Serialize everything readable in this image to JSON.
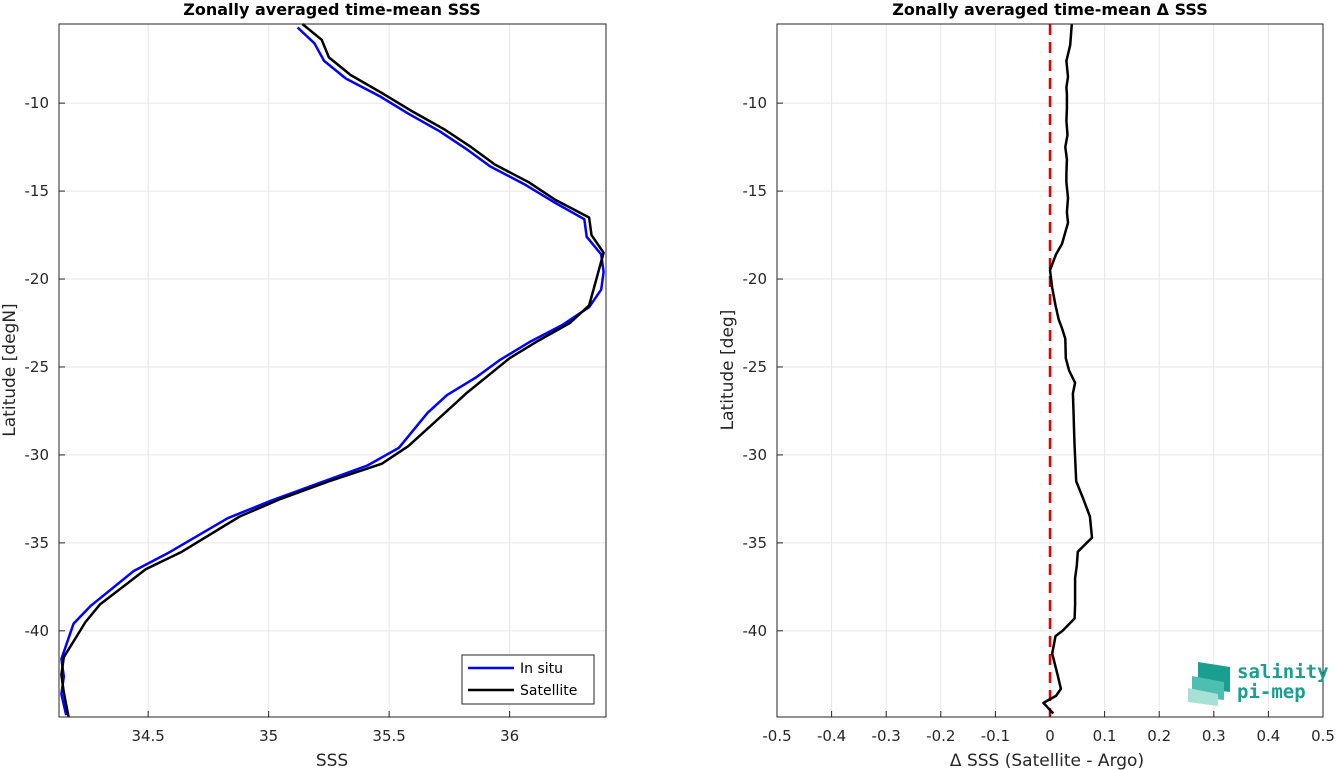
{
  "chart_data": [
    {
      "type": "line",
      "title": "Zonally averaged time-mean SSS",
      "xlabel": "SSS",
      "ylabel": "Latitude [degN]",
      "xlim": [
        34.13,
        36.4
      ],
      "ylim": [
        -44.9,
        -5.5
      ],
      "xticks": [
        "34.5",
        "35",
        "35.5",
        "36"
      ],
      "yticks": [
        "-10",
        "-15",
        "-20",
        "-25",
        "-30",
        "-35",
        "-40"
      ],
      "grid": true,
      "legend_position": "bottom-right",
      "series": [
        {
          "name": "In situ",
          "color": "#0000ff",
          "x": [
            35.12,
            35.19,
            35.23,
            35.32,
            35.46,
            35.58,
            35.71,
            35.82,
            35.92,
            36.06,
            36.18,
            36.31,
            36.32,
            36.38,
            36.39,
            36.38,
            36.33,
            36.22,
            36.08,
            35.96,
            35.86,
            35.74,
            35.66,
            35.54,
            35.41,
            35.21,
            35.01,
            34.83,
            34.58,
            34.44,
            34.26,
            34.19,
            34.14,
            34.15,
            34.14,
            34.16
          ],
          "y": [
            -5.7,
            -6.6,
            -7.6,
            -8.6,
            -9.6,
            -10.6,
            -11.6,
            -12.6,
            -13.6,
            -14.6,
            -15.6,
            -16.6,
            -17.6,
            -18.6,
            -19.6,
            -20.6,
            -21.6,
            -22.6,
            -23.6,
            -24.6,
            -25.6,
            -26.6,
            -27.6,
            -29.6,
            -30.6,
            -31.6,
            -32.6,
            -33.6,
            -35.6,
            -36.6,
            -38.6,
            -39.6,
            -41.6,
            -42.6,
            -43.6,
            -44.8
          ]
        },
        {
          "name": "Satellite",
          "color": "#000000",
          "x": [
            35.14,
            35.22,
            35.25,
            35.34,
            35.48,
            35.6,
            35.73,
            35.84,
            35.94,
            36.08,
            36.19,
            36.33,
            36.34,
            36.39,
            36.37,
            36.35,
            36.33,
            36.25,
            36.12,
            36.0,
            35.91,
            35.82,
            35.74,
            35.58,
            35.47,
            35.25,
            35.05,
            34.88,
            34.64,
            34.49,
            34.3,
            34.24,
            34.15,
            34.14,
            34.15,
            34.17
          ],
          "y": [
            -5.5,
            -6.4,
            -7.4,
            -8.4,
            -9.5,
            -10.5,
            -11.5,
            -12.5,
            -13.5,
            -14.5,
            -15.5,
            -16.5,
            -17.5,
            -18.5,
            -19.5,
            -20.5,
            -21.5,
            -22.5,
            -23.5,
            -24.5,
            -25.5,
            -26.5,
            -27.5,
            -29.5,
            -30.5,
            -31.5,
            -32.5,
            -33.5,
            -35.5,
            -36.5,
            -38.5,
            -39.5,
            -41.5,
            -42.5,
            -43.5,
            -44.9
          ]
        }
      ]
    },
    {
      "type": "line",
      "title": "Zonally averaged time-mean Δ SSS",
      "xlabel": "Δ SSS (Satellite - Argo)",
      "ylabel": "Latitude [deg]",
      "xlim": [
        -0.5,
        0.5
      ],
      "ylim": [
        -44.9,
        -5.5
      ],
      "xticks": [
        "-0.5",
        "-0.4",
        "-0.3",
        "-0.2",
        "-0.1",
        "0",
        "0.1",
        "0.2",
        "0.3",
        "0.4",
        "0.5"
      ],
      "yticks": [
        "-10",
        "-15",
        "-20",
        "-25",
        "-30",
        "-35",
        "-40"
      ],
      "grid": true,
      "reference_line": {
        "x": 0,
        "color": "#e60000",
        "style": "dashed"
      },
      "series": [
        {
          "color": "#000000",
          "x": [
            0.04,
            0.037,
            0.03,
            0.033,
            0.03,
            0.031,
            0.031,
            0.03,
            0.032,
            0.028,
            0.031,
            0.03,
            0.03,
            0.033,
            0.031,
            0.033,
            0.022,
            0.011,
            0.0,
            0.004,
            0.01,
            0.016,
            0.022,
            0.028,
            0.029,
            0.035,
            0.046,
            0.042,
            0.043,
            0.044,
            0.045,
            0.048,
            0.061,
            0.073,
            0.077,
            0.051,
            0.049,
            0.046,
            0.046,
            0.045,
            0.023,
            0.01,
            0.004,
            0.014,
            0.02,
            0.011,
            -0.012,
            0.006
          ],
          "y": [
            -5.5,
            -6.7,
            -7.6,
            -8.5,
            -9.1,
            -9.5,
            -10.3,
            -11.0,
            -11.8,
            -12.5,
            -13.2,
            -14.0,
            -14.5,
            -15.4,
            -16.2,
            -16.8,
            -18.0,
            -18.6,
            -19.5,
            -20.5,
            -21.5,
            -22.3,
            -22.8,
            -23.4,
            -24.5,
            -25.2,
            -25.9,
            -26.5,
            -27.5,
            -28.5,
            -29.5,
            -31.5,
            -32.5,
            -33.5,
            -34.7,
            -35.5,
            -36.3,
            -37.0,
            -38.5,
            -39.3,
            -40.0,
            -40.3,
            -41.3,
            -42.5,
            -43.3,
            -43.7,
            -44.1,
            -44.7
          ]
        }
      ]
    }
  ],
  "logo": {
    "line1": "salinity",
    "line2": "pi-mep",
    "color": "#1a9e8f"
  }
}
